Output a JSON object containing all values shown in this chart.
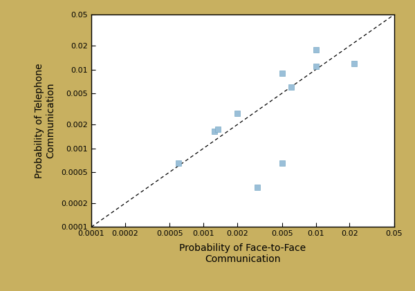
{
  "x": [
    0.0006,
    0.00125,
    0.00135,
    0.002,
    0.003,
    0.005,
    0.006,
    0.005,
    0.01,
    0.01,
    0.022
  ],
  "y": [
    0.00065,
    0.00165,
    0.00175,
    0.0028,
    0.00032,
    0.009,
    0.006,
    0.00065,
    0.011,
    0.018,
    0.012
  ],
  "marker_color": "#9ABFD8",
  "marker_edge_color": "#7aaac5",
  "dashed_line_x": [
    0.0001,
    0.05
  ],
  "dashed_line_y": [
    0.0001,
    0.05
  ],
  "xlabel": "Probability of Face-to-Face\nCommunication",
  "ylabel": "Probability of Telephone\nCommunication",
  "xlim": [
    0.0001,
    0.05
  ],
  "ylim": [
    0.0001,
    0.05
  ],
  "xticks": [
    0.0001,
    0.0002,
    0.0005,
    0.001,
    0.002,
    0.005,
    0.01,
    0.02,
    0.05
  ],
  "yticks": [
    0.0001,
    0.0002,
    0.0005,
    0.001,
    0.002,
    0.005,
    0.01,
    0.02,
    0.05
  ],
  "background_color": "#C8B060",
  "plot_bg": "#ffffff",
  "label_fontsize": 10,
  "tick_fontsize": 8
}
